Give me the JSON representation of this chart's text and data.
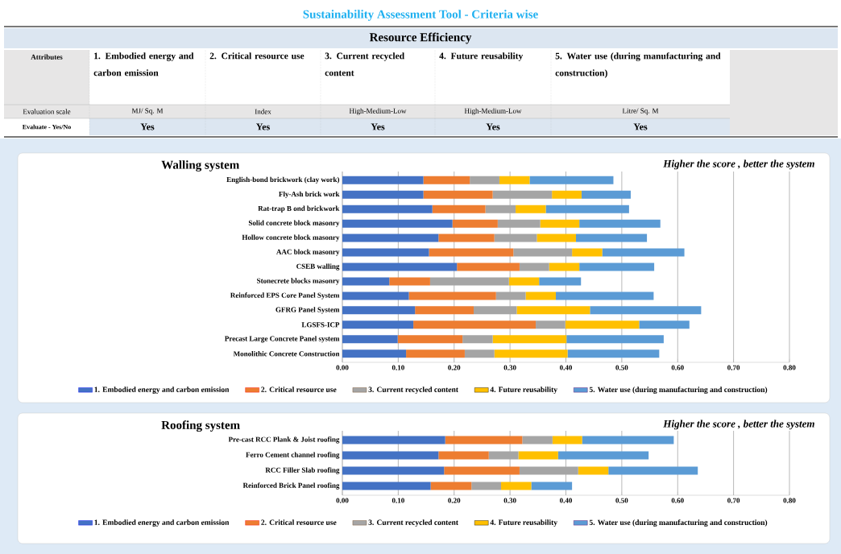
{
  "chart_data": [
    {
      "type": "other",
      "title": "Sustainability Assessment Tool - Criteria wise",
      "subtitle": "Resource Efficiency",
      "annotations": [
        "Attributes",
        "1. Embodied energy and carbon emission",
        "2. Critical resource use",
        "3. Current recycled content",
        "4. Future reusability",
        "5. Water use (during manufacturing and construction)",
        "Evaluation scale",
        "MJ/ Sq. M",
        "Index",
        "High-Medium-Low",
        "High-Medium-Low",
        "Litre/ Sq. M",
        "Evaluate - Yes/No",
        "Yes",
        "Yes",
        "Yes",
        "Yes",
        "Yes"
      ]
    },
    {
      "type": "bar",
      "orientation": "horizontal",
      "stacked": true,
      "title": "Walling system",
      "annotations": [
        "Higher the score , better the system"
      ],
      "categories": [
        "English-bond brickwork (clay work)",
        "Fly-Ash brick work",
        "Rat-trap B ond brickwork",
        "Solid concrete block masonry",
        "Hollow concrete block masonry",
        "AAC block masonry",
        "CSEB walling",
        "Stonecrete blocks masonry",
        "Reinforced EPS Core Panel System",
        "GFRG Panel System",
        "LGSFS-ICP",
        "Precast Large Concrete Panel system",
        "Monolithic Concrete Construction"
      ],
      "series": [
        {
          "name": "1. Embodied energy and carbon emission",
          "color": "#4472c4",
          "values": [
            0.145,
            0.145,
            0.161,
            0.197,
            0.172,
            0.155,
            0.205,
            0.084,
            0.119,
            0.13,
            0.127,
            0.099,
            0.114
          ]
        },
        {
          "name": "2. Critical resource use",
          "color": "#ed7d31",
          "values": [
            0.083,
            0.124,
            0.095,
            0.081,
            0.1,
            0.151,
            0.112,
            0.073,
            0.156,
            0.105,
            0.219,
            0.116,
            0.105
          ]
        },
        {
          "name": "3. Current recycled content",
          "color": "#a5a5a5",
          "values": [
            0.053,
            0.106,
            0.054,
            0.076,
            0.076,
            0.105,
            0.053,
            0.141,
            0.053,
            0.077,
            0.053,
            0.054,
            0.053
          ]
        },
        {
          "name": "4. Future reusability",
          "color": "#ffc000",
          "values": [
            0.054,
            0.053,
            0.054,
            0.07,
            0.07,
            0.054,
            0.054,
            0.054,
            0.054,
            0.131,
            0.132,
            0.132,
            0.131
          ]
        },
        {
          "name": "5. Water use (during manufacturing and construction)",
          "color": "#5b9bd5",
          "values": [
            0.15,
            0.088,
            0.149,
            0.145,
            0.127,
            0.147,
            0.134,
            0.075,
            0.175,
            0.199,
            0.09,
            0.174,
            0.164
          ]
        }
      ],
      "xlim": [
        0,
        0.8
      ],
      "xticks": [
        {
          "value": 0,
          "label": "0.00"
        },
        {
          "value": 0.1,
          "label": "0.10"
        },
        {
          "value": 0.2,
          "label": "0.20"
        },
        {
          "value": 0.3,
          "label": "0.30"
        },
        {
          "value": 0.4,
          "label": "0.40"
        },
        {
          "value": 0.5,
          "label": "0.50"
        },
        {
          "value": 0.6,
          "label": "0.60"
        },
        {
          "value": 0.7,
          "label": "0.70"
        },
        {
          "value": 0.8,
          "label": "0.80"
        }
      ],
      "grid": "x",
      "legend": "bottom"
    },
    {
      "type": "bar",
      "orientation": "horizontal",
      "stacked": true,
      "title": "Roofing system",
      "annotations": [
        "Higher the score , better the system"
      ],
      "categories": [
        "Pre-cast RCC Plank & Joist roofing",
        "Ferro Cement channel roofing",
        "RCC Filler Slab roofing",
        "Reinforced Brick Panel roofing"
      ],
      "series": [
        {
          "name": "1. Embodied energy and carbon emission",
          "color": "#4472c4",
          "values": [
            0.184,
            0.172,
            0.182,
            0.158
          ]
        },
        {
          "name": "2. Critical resource use",
          "color": "#ed7d31",
          "values": [
            0.138,
            0.09,
            0.135,
            0.073
          ]
        },
        {
          "name": "3. Current recycled content",
          "color": "#a5a5a5",
          "values": [
            0.054,
            0.053,
            0.105,
            0.053
          ]
        },
        {
          "name": "4. Future reusability",
          "color": "#ffc000",
          "values": [
            0.053,
            0.071,
            0.054,
            0.054
          ]
        },
        {
          "name": "5. Water use (during manufacturing and construction)",
          "color": "#5b9bd5",
          "values": [
            0.164,
            0.162,
            0.16,
            0.073
          ]
        }
      ],
      "xlim": [
        0,
        0.8
      ],
      "xticks": [
        {
          "value": 0,
          "label": "0.00"
        },
        {
          "value": 0.1,
          "label": "0.10"
        },
        {
          "value": 0.2,
          "label": "0.20"
        },
        {
          "value": 0.3,
          "label": "0.30"
        },
        {
          "value": 0.4,
          "label": "0.40"
        },
        {
          "value": 0.5,
          "label": "0.50"
        },
        {
          "value": 0.6,
          "label": "0.60"
        },
        {
          "value": 0.7,
          "label": "0.70"
        },
        {
          "value": 0.8,
          "label": "0.80"
        }
      ],
      "grid": "x",
      "legend": "bottom"
    }
  ]
}
